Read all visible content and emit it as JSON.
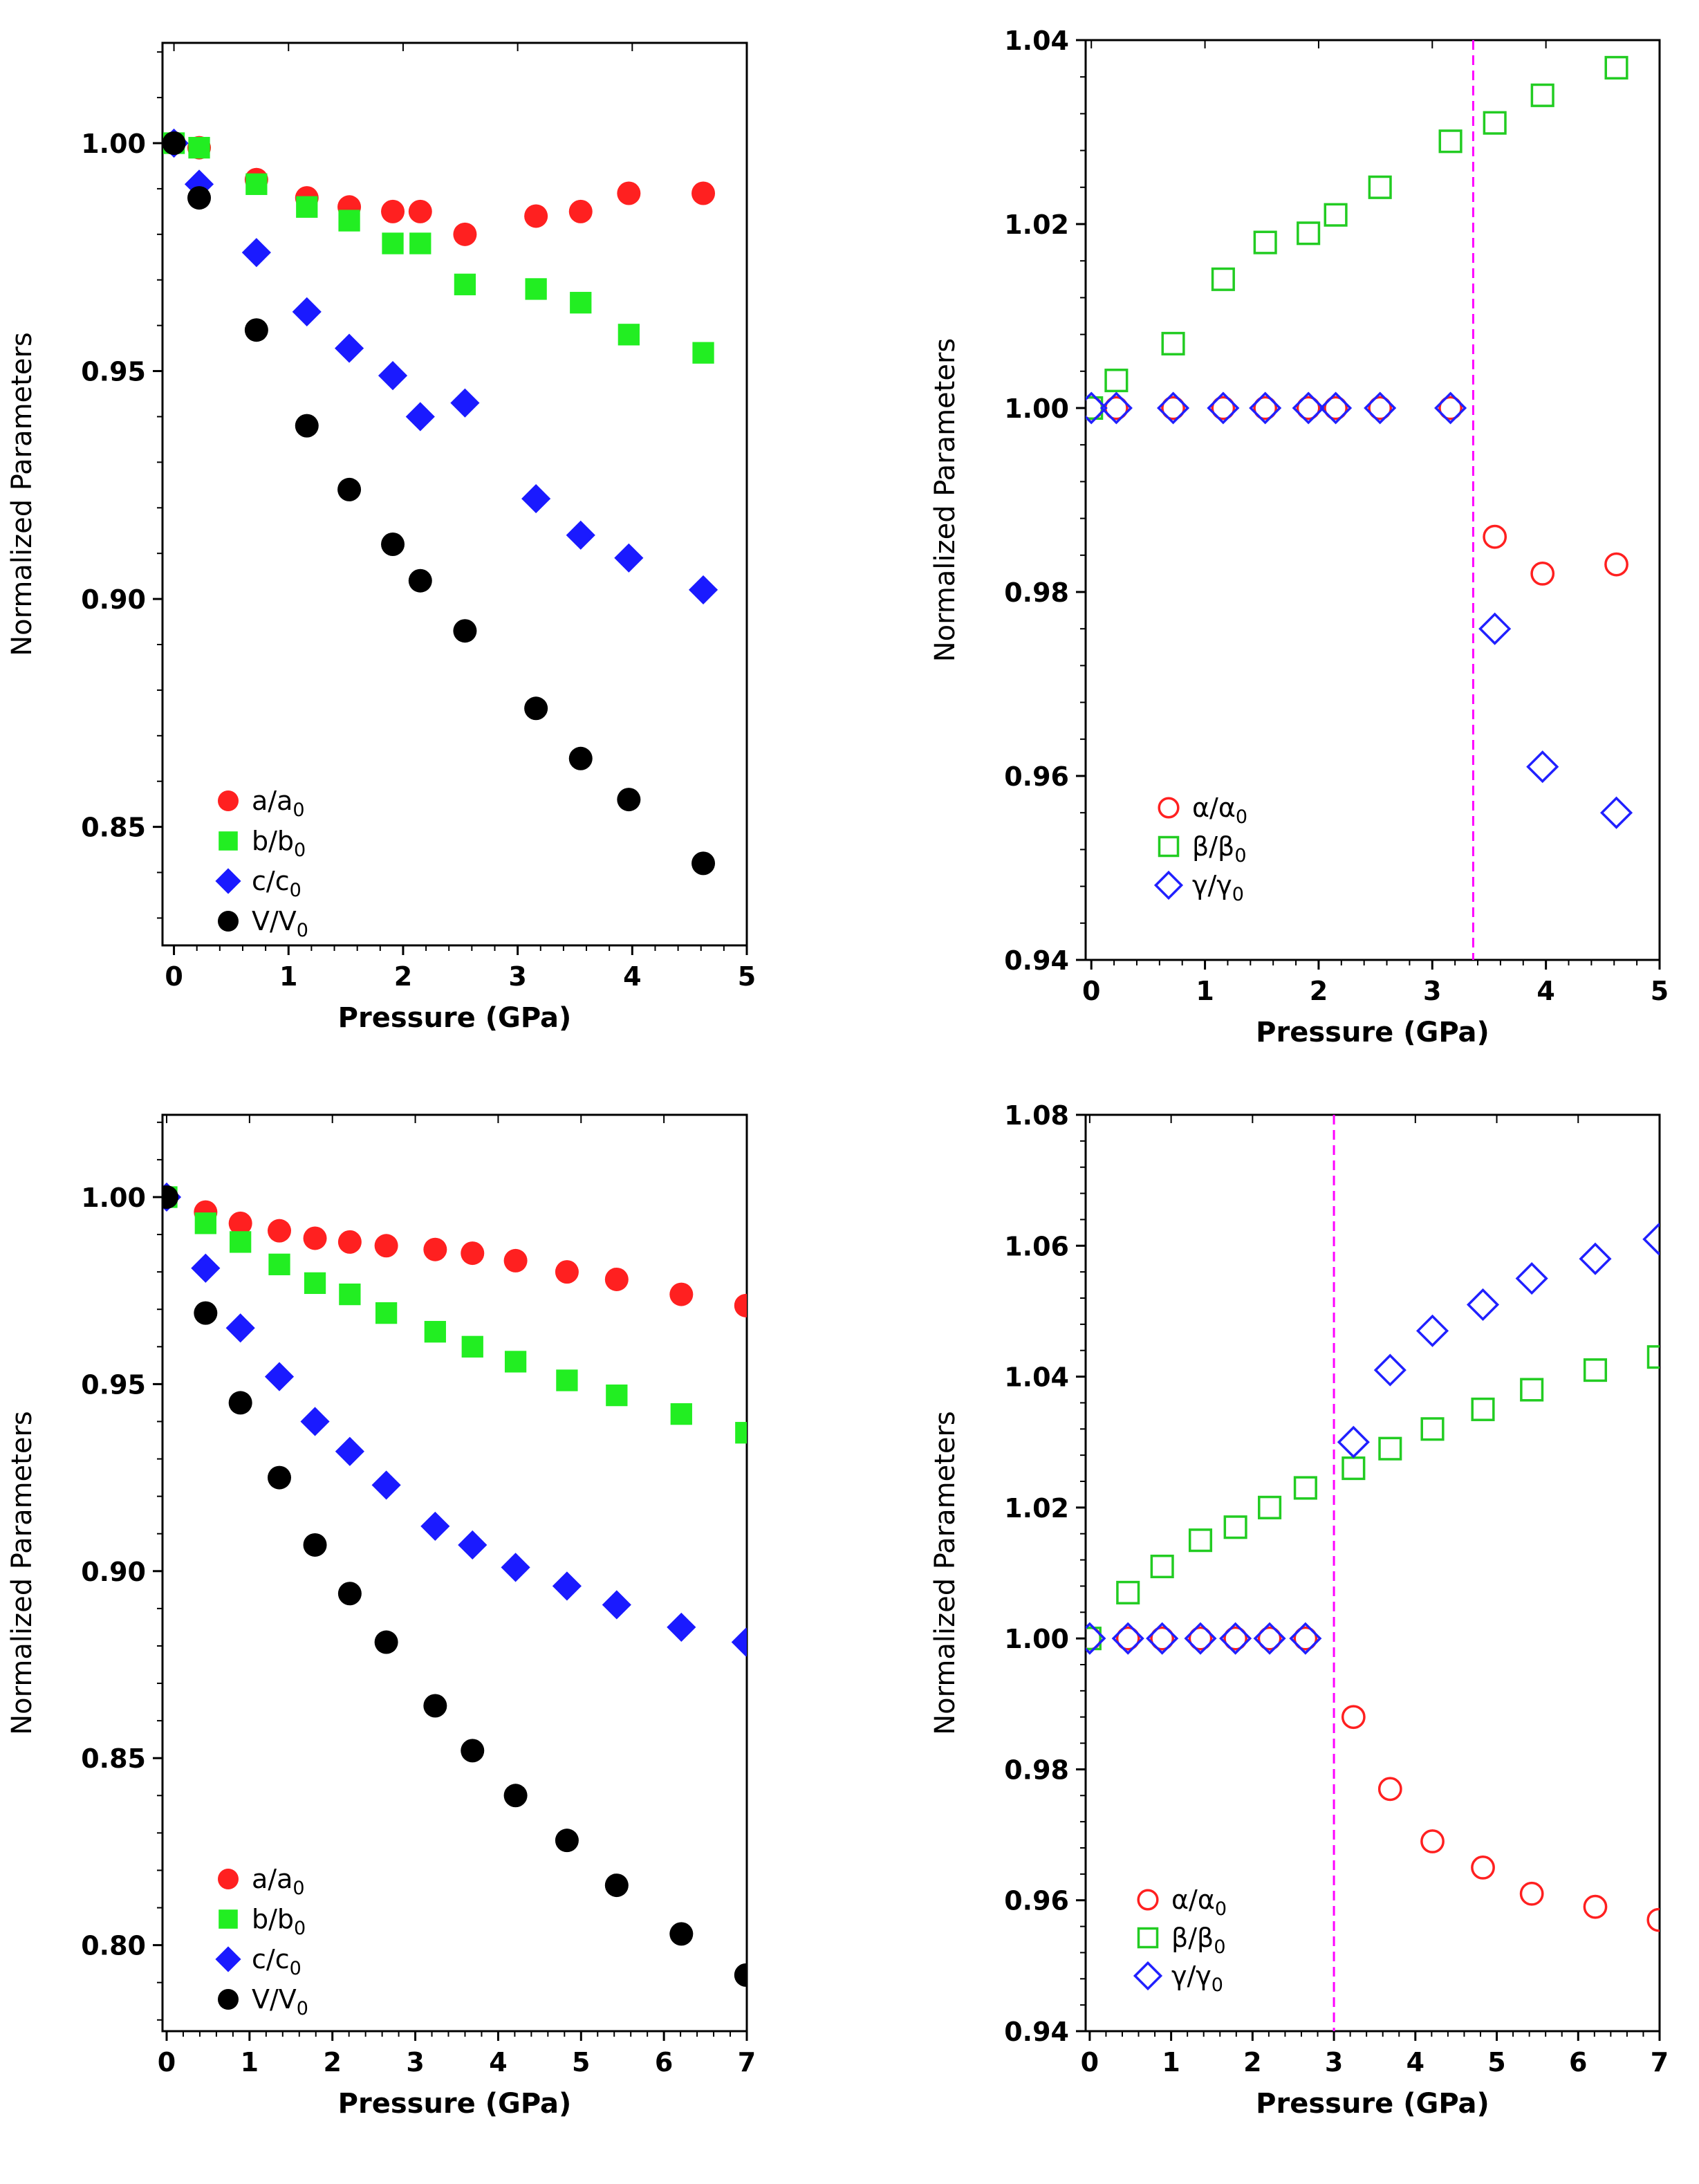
{
  "chart_data": [
    {
      "panel": "top-left",
      "type": "scatter",
      "xlabel": "Pressure (GPa)",
      "ylabel": "Normalized Parameters",
      "xlim": [
        -0.1,
        5
      ],
      "ylim": [
        0.824,
        1.022
      ],
      "xticks": [
        0,
        1,
        2,
        3,
        4,
        5
      ],
      "xtick_labels": [
        "0",
        "1",
        "2",
        "3",
        "4",
        "5"
      ],
      "yticks": [
        0.85,
        0.9,
        0.95,
        1.0
      ],
      "ytick_labels": [
        "0.85",
        "0.90",
        "0.95",
        "1.00"
      ],
      "legend_position": "bottom-left",
      "series": [
        {
          "name": "a/a₀",
          "label": "a/a",
          "sub": "0",
          "marker": "circle",
          "filled": true,
          "color": "#ff2020",
          "x": [
            0,
            0.22,
            0.72,
            1.16,
            1.53,
            1.91,
            2.15,
            2.54,
            3.16,
            3.55,
            3.97,
            4.62
          ],
          "y": [
            1.0,
            0.999,
            0.992,
            0.988,
            0.986,
            0.985,
            0.985,
            0.98,
            0.984,
            0.985,
            0.989,
            0.989
          ]
        },
        {
          "name": "b/b₀",
          "label": "b/b",
          "sub": "0",
          "marker": "square",
          "filled": true,
          "color": "#22ee22",
          "x": [
            0,
            0.22,
            0.72,
            1.16,
            1.53,
            1.91,
            2.15,
            2.54,
            3.16,
            3.55,
            3.97,
            4.62
          ],
          "y": [
            1.0,
            0.999,
            0.991,
            0.986,
            0.983,
            0.978,
            0.978,
            0.969,
            0.968,
            0.965,
            0.958,
            0.954
          ]
        },
        {
          "name": "c/c₀",
          "label": "c/c",
          "sub": "0",
          "marker": "diamond",
          "filled": true,
          "color": "#1a1aff",
          "x": [
            0,
            0.22,
            0.72,
            1.16,
            1.53,
            1.91,
            2.15,
            2.54,
            3.16,
            3.55,
            3.97,
            4.62
          ],
          "y": [
            1.0,
            0.991,
            0.976,
            0.963,
            0.955,
            0.949,
            0.94,
            0.943,
            0.922,
            0.914,
            0.909,
            0.902
          ]
        },
        {
          "name": "V/V₀",
          "label": "V/V",
          "sub": "0",
          "marker": "circle",
          "filled": true,
          "color": "#000000",
          "x": [
            0,
            0.22,
            0.72,
            1.16,
            1.53,
            1.91,
            2.15,
            2.54,
            3.16,
            3.55,
            3.97,
            4.62
          ],
          "y": [
            1.0,
            0.988,
            0.959,
            0.938,
            0.924,
            0.912,
            0.904,
            0.893,
            0.876,
            0.865,
            0.856,
            0.842
          ]
        }
      ]
    },
    {
      "panel": "top-right",
      "type": "scatter",
      "xlabel": "Pressure (GPa)",
      "ylabel": "Normalized Parameters",
      "xlim": [
        -0.05,
        5
      ],
      "ylim": [
        0.94,
        1.04
      ],
      "xticks": [
        0,
        1,
        2,
        3,
        4,
        5
      ],
      "xtick_labels": [
        "0",
        "1",
        "2",
        "3",
        "4",
        "5"
      ],
      "yticks": [
        0.94,
        0.96,
        0.98,
        1.0,
        1.02,
        1.04
      ],
      "ytick_labels": [
        "0.94",
        "0.96",
        "0.98",
        "1.00",
        "1.02",
        "1.04"
      ],
      "vline": {
        "x": 3.36,
        "color": "#ff00ff"
      },
      "legend_position": "bottom-center",
      "series": [
        {
          "name": "α/α₀",
          "label": "α/α",
          "sub": "0",
          "marker": "circle",
          "filled": false,
          "color": "#ff2020",
          "x": [
            0,
            0.22,
            0.72,
            1.16,
            1.53,
            1.91,
            2.15,
            2.54,
            3.16,
            3.55,
            3.97,
            4.62
          ],
          "y": [
            1.0,
            1.0,
            1.0,
            1.0,
            1.0,
            1.0,
            1.0,
            1.0,
            1.0,
            0.986,
            0.982,
            0.983
          ]
        },
        {
          "name": "β/β₀",
          "label": "β/β",
          "sub": "0",
          "marker": "square",
          "filled": false,
          "color": "#22cc22",
          "x": [
            0,
            0.22,
            0.72,
            1.16,
            1.53,
            1.91,
            2.15,
            2.54,
            3.16,
            3.55,
            3.97,
            4.62
          ],
          "y": [
            1.0,
            1.003,
            1.007,
            1.014,
            1.018,
            1.019,
            1.021,
            1.024,
            1.029,
            1.031,
            1.034,
            1.037
          ]
        },
        {
          "name": "γ/γ₀",
          "label": "γ/γ",
          "sub": "0",
          "marker": "diamond",
          "filled": false,
          "color": "#2020ff",
          "x": [
            0,
            0.22,
            0.72,
            1.16,
            1.53,
            1.91,
            2.15,
            2.54,
            3.16,
            3.55,
            3.97,
            4.62
          ],
          "y": [
            1.0,
            1.0,
            1.0,
            1.0,
            1.0,
            1.0,
            1.0,
            1.0,
            1.0,
            0.976,
            0.961,
            0.956
          ]
        }
      ]
    },
    {
      "panel": "bottom-left",
      "type": "scatter",
      "xlabel": "Pressure (GPa)",
      "ylabel": "Normalized Parameters",
      "xlim": [
        -0.05,
        7
      ],
      "ylim": [
        0.777,
        1.022
      ],
      "xticks": [
        0,
        1,
        2,
        3,
        4,
        5,
        6,
        7
      ],
      "xtick_labels": [
        "0",
        "1",
        "2",
        "3",
        "4",
        "5",
        "6",
        "7"
      ],
      "yticks": [
        0.8,
        0.85,
        0.9,
        0.95,
        1.0
      ],
      "ytick_labels": [
        "0.80",
        "0.85",
        "0.90",
        "0.95",
        "1.00"
      ],
      "legend_position": "bottom-left",
      "series": [
        {
          "name": "a/a₀",
          "label": "a/a",
          "sub": "0",
          "marker": "circle",
          "filled": true,
          "color": "#ff2020",
          "x": [
            0,
            0.47,
            0.89,
            1.36,
            1.79,
            2.21,
            2.65,
            3.24,
            3.69,
            4.21,
            4.83,
            5.43,
            6.21,
            6.99
          ],
          "y": [
            1.0,
            0.996,
            0.993,
            0.991,
            0.989,
            0.988,
            0.987,
            0.986,
            0.985,
            0.983,
            0.98,
            0.978,
            0.974,
            0.971
          ]
        },
        {
          "name": "b/b₀",
          "label": "b/b",
          "sub": "0",
          "marker": "square",
          "filled": true,
          "color": "#22ee22",
          "x": [
            0,
            0.47,
            0.89,
            1.36,
            1.79,
            2.21,
            2.65,
            3.24,
            3.69,
            4.21,
            4.83,
            5.43,
            6.21,
            6.99
          ],
          "y": [
            1.0,
            0.993,
            0.988,
            0.982,
            0.977,
            0.974,
            0.969,
            0.964,
            0.96,
            0.956,
            0.951,
            0.947,
            0.942,
            0.937
          ]
        },
        {
          "name": "c/c₀",
          "label": "c/c",
          "sub": "0",
          "marker": "diamond",
          "filled": true,
          "color": "#1a1aff",
          "x": [
            0,
            0.47,
            0.89,
            1.36,
            1.79,
            2.21,
            2.65,
            3.24,
            3.69,
            4.21,
            4.83,
            5.43,
            6.21,
            6.99
          ],
          "y": [
            1.0,
            0.981,
            0.965,
            0.952,
            0.94,
            0.932,
            0.923,
            0.912,
            0.907,
            0.901,
            0.896,
            0.891,
            0.885,
            0.881
          ]
        },
        {
          "name": "V/V₀",
          "label": "V/V",
          "sub": "0",
          "marker": "circle",
          "filled": true,
          "color": "#000000",
          "x": [
            0,
            0.47,
            0.89,
            1.36,
            1.79,
            2.21,
            2.65,
            3.24,
            3.69,
            4.21,
            4.83,
            5.43,
            6.21,
            6.99
          ],
          "y": [
            1.0,
            0.969,
            0.945,
            0.925,
            0.907,
            0.894,
            0.881,
            0.864,
            0.852,
            0.84,
            0.828,
            0.816,
            0.803,
            0.792
          ]
        }
      ]
    },
    {
      "panel": "bottom-right",
      "type": "scatter",
      "xlabel": "Pressure (GPa)",
      "ylabel": "Normalized Parameters",
      "xlim": [
        -0.05,
        7
      ],
      "ylim": [
        0.94,
        1.08
      ],
      "xticks": [
        0,
        1,
        2,
        3,
        4,
        5,
        6,
        7
      ],
      "xtick_labels": [
        "0",
        "1",
        "2",
        "3",
        "4",
        "5",
        "6",
        "7"
      ],
      "yticks": [
        0.94,
        0.96,
        0.98,
        1.0,
        1.02,
        1.04,
        1.06,
        1.08
      ],
      "ytick_labels": [
        "0.94",
        "0.96",
        "0.98",
        "1.00",
        "1.02",
        "1.04",
        "1.06",
        "1.08"
      ],
      "vline": {
        "x": 3.0,
        "color": "#ff00ff"
      },
      "legend_position": "top-left",
      "series": [
        {
          "name": "α/α₀",
          "label": "α/α",
          "sub": "0",
          "marker": "circle",
          "filled": false,
          "color": "#ff2020",
          "x": [
            0,
            0.47,
            0.89,
            1.36,
            1.79,
            2.21,
            2.65,
            3.24,
            3.69,
            4.21,
            4.83,
            5.43,
            6.21,
            6.99
          ],
          "y": [
            1.0,
            1.0,
            1.0,
            1.0,
            1.0,
            1.0,
            1.0,
            0.988,
            0.977,
            0.969,
            0.965,
            0.961,
            0.959,
            0.957
          ]
        },
        {
          "name": "β/β₀",
          "label": "β/β",
          "sub": "0",
          "marker": "square",
          "filled": false,
          "color": "#22cc22",
          "x": [
            0,
            0.47,
            0.89,
            1.36,
            1.79,
            2.21,
            2.65,
            3.24,
            3.69,
            4.21,
            4.83,
            5.43,
            6.21,
            6.99
          ],
          "y": [
            1.0,
            1.007,
            1.011,
            1.015,
            1.017,
            1.02,
            1.023,
            1.026,
            1.029,
            1.032,
            1.035,
            1.038,
            1.041,
            1.043
          ]
        },
        {
          "name": "γ/γ₀",
          "label": "γ/γ",
          "sub": "0",
          "marker": "diamond",
          "filled": false,
          "color": "#2020ff",
          "x": [
            0,
            0.47,
            0.89,
            1.36,
            1.79,
            2.21,
            2.65,
            3.24,
            3.69,
            4.21,
            4.83,
            5.43,
            6.21,
            6.99
          ],
          "y": [
            1.0,
            1.0,
            1.0,
            1.0,
            1.0,
            1.0,
            1.0,
            1.03,
            1.041,
            1.047,
            1.051,
            1.055,
            1.058,
            1.061
          ]
        }
      ]
    }
  ]
}
